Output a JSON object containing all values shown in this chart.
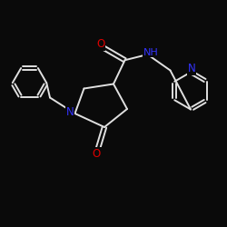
{
  "bg_color": "#0a0a0a",
  "bond_color": "#e0e0e0",
  "N_color": "#3333ff",
  "O_color": "#dd0000",
  "lw": 1.4,
  "fs": 8.5,
  "xlim": [
    0,
    10
  ],
  "ylim": [
    0,
    10
  ]
}
